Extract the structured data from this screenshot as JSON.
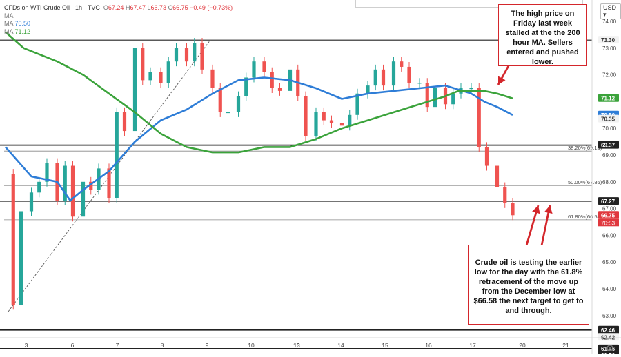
{
  "header": {
    "title": "CFDs on WTI Crude Oil · 1h · TVC",
    "ohlc": [
      {
        "label": "O",
        "value": "67.24"
      },
      {
        "label": "H",
        "value": "67.47"
      },
      {
        "label": "L",
        "value": "66.73"
      },
      {
        "label": "C",
        "value": "66.75"
      }
    ],
    "change": "−0.49 (−0.73%)",
    "ma_rows": [
      {
        "label": "MA",
        "value": ""
      },
      {
        "label": "MA",
        "value": "70.50"
      },
      {
        "label": "MA",
        "value": "71.12"
      }
    ],
    "currency": "USD"
  },
  "colors": {
    "up": "#26a69a",
    "down": "#ef5350",
    "ma100": "#2e7dd7",
    "ma200": "#3ba33b",
    "annotation": "#d4262b",
    "level_line": "#222222"
  },
  "annotations": {
    "top": "The high price on Friday last week stalled at the the 200 hour MA. Sellers entered and pushed lower.",
    "bottom": "Crude oil is testing the earlier low for the day with the 61.8% retracement of the move up from the December low at $66.58 the next target to get to and through."
  },
  "chart_data": {
    "type": "line",
    "title": "CFDs on WTI Crude Oil · 1h · TVC",
    "xlabel": "",
    "ylabel": "",
    "ylim": [
      61.55,
      74.35
    ],
    "y_scale": "linear",
    "grid": false,
    "x_ticks": [
      "3",
      "6",
      "7",
      "8",
      "9",
      "10",
      "13",
      "14",
      "15",
      "16",
      "17",
      "20",
      "21"
    ],
    "y_ticks": [
      "74.00",
      "73.00",
      "72.00",
      "70.00",
      "69.00",
      "68.00",
      "67.00",
      "66.00",
      "65.00",
      "64.00",
      "63.00"
    ],
    "price_axis_labels": [
      {
        "value": 73.3,
        "text": "73.30"
      },
      {
        "value": 71.12,
        "text": "71.12"
      },
      {
        "value": 70.5,
        "text": "70.50"
      },
      {
        "value": 70.35,
        "text": "70.35"
      },
      {
        "value": 69.37,
        "text": "69.37"
      },
      {
        "value": 67.27,
        "text": "67.27"
      },
      {
        "value": 66.75,
        "text": "66.75"
      },
      {
        "value": 62.46,
        "text": "62.46"
      },
      {
        "value": 62.42,
        "text": "62.42"
      },
      {
        "value": 61.76,
        "text": "61.76"
      }
    ],
    "countdown": "70:53",
    "horizontal_levels": [
      73.3,
      69.37,
      67.27,
      62.46,
      61.76
    ],
    "fib_levels": [
      {
        "label": "38.20%(69.15)",
        "value": 69.15
      },
      {
        "label": "50.00%(67.86)",
        "value": 67.86
      },
      {
        "label": "61.80%(66.58)",
        "value": 66.58
      }
    ],
    "series": [
      {
        "name": "Price (close)",
        "x": [
          0,
          0.3,
          0.6,
          1,
          1.3,
          1.6,
          2,
          2.3,
          2.6,
          3,
          3.3,
          3.6,
          4,
          4.3,
          4.6,
          5,
          5.3,
          5.6,
          6,
          6.3,
          6.6,
          7,
          7.3,
          7.6,
          8,
          8.3,
          8.6,
          9,
          9.3,
          9.6,
          10,
          10.3,
          10.6,
          11,
          11.3,
          11.6,
          12,
          12.3,
          12.6,
          13,
          13.3,
          13.6,
          14,
          14.3,
          14.6,
          15,
          15.3,
          15.6,
          16,
          16.3,
          16.6,
          17,
          17.3,
          17.6,
          18,
          18.3,
          18.6,
          19,
          19.3,
          19.6
        ],
        "y": [
          68.3,
          63.4,
          66.9,
          67.6,
          68.0,
          68.7,
          67.3,
          68.6,
          66.7,
          68.0,
          67.7,
          68.5,
          67.4,
          70.6,
          69.9,
          73.0,
          71.8,
          72.1,
          71.7,
          72.5,
          73.0,
          72.5,
          73.2,
          72.2,
          71.5,
          70.6,
          70.6,
          71.2,
          71.9,
          72.5,
          72.1,
          71.5,
          71.4,
          72.2,
          71.2,
          69.7,
          70.6,
          70.3,
          70.2,
          70.1,
          70.5,
          71.3,
          71.6,
          72.2,
          71.6,
          72.5,
          72.3,
          71.7,
          71.7,
          70.8,
          71.5,
          70.9,
          71.3,
          71.5,
          71.5,
          69.3,
          68.6,
          67.8,
          67.2,
          66.75
        ]
      },
      {
        "name": "MA",
        "x": [
          0,
          1,
          2,
          2.5,
          3,
          4,
          5,
          6,
          7,
          8,
          9,
          10,
          11,
          12,
          13,
          14,
          15,
          16,
          17,
          18,
          18.5,
          19,
          19.6
        ],
        "y": [
          69.3,
          68.2,
          68.0,
          67.3,
          67.7,
          68.4,
          69.5,
          70.3,
          70.7,
          71.3,
          71.8,
          71.9,
          71.8,
          71.5,
          71.1,
          71.3,
          71.4,
          71.5,
          71.6,
          71.3,
          71.0,
          70.8,
          70.5
        ]
      },
      {
        "name": "MA",
        "x": [
          0,
          0.7,
          2,
          3,
          4,
          5,
          6,
          7,
          8,
          9,
          10,
          11,
          12,
          13,
          14,
          15,
          16,
          17,
          17.5,
          18,
          18.5,
          19,
          19.6
        ],
        "y": [
          73.6,
          73.0,
          72.5,
          72.0,
          71.3,
          70.6,
          69.8,
          69.3,
          69.1,
          69.1,
          69.3,
          69.3,
          69.6,
          70.0,
          70.3,
          70.6,
          70.9,
          71.2,
          71.4,
          71.4,
          71.4,
          71.3,
          71.12
        ]
      }
    ]
  }
}
